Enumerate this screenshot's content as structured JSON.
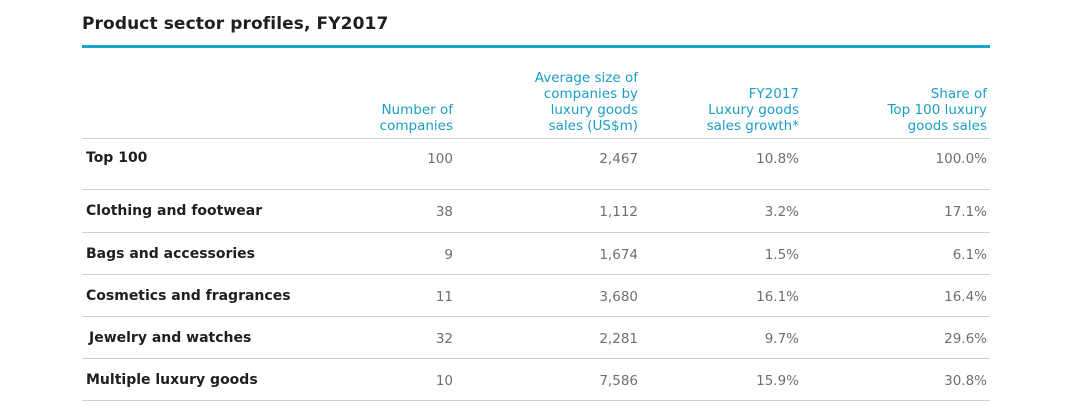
{
  "title": "Product sector profiles, FY2017",
  "headers": [
    "Number of\ncompanies",
    "Average size of\ncompanies by\nluxury goods\nsales (US$m)",
    "FY2017\nLuxury goods\nsales growth*",
    "Share of\nTop 100 luxury\ngoods sales"
  ],
  "rows": [
    {
      "label": "Top 100",
      "number": "100",
      "avg_size": "2,467",
      "growth": "10.8%",
      "share": "100.0%"
    },
    {
      "label": "Clothing and footwear",
      "number": "38",
      "avg_size": "1,112",
      "growth": "3.2%",
      "share": "17.1%"
    },
    {
      "label": "Bags and accessories",
      "number": "9",
      "avg_size": "1,674",
      "growth": "1.5%",
      "share": "6.1%"
    },
    {
      "label": "Cosmetics and fragrances",
      "number": "11",
      "avg_size": "3,680",
      "growth": "16.1%",
      "share": "16.4%"
    },
    {
      "label": "Jewelry and watches",
      "number": "32",
      "avg_size": "2,281",
      "growth": "9.7%",
      "share": "29.6%"
    },
    {
      "label": "Multiple luxury goods",
      "number": "10",
      "avg_size": "7,586",
      "growth": "15.9%",
      "share": "30.8%"
    }
  ],
  "colors": {
    "accent": "#1aa6c9",
    "header_text": "#1a9ec6",
    "cell_text": "#6f6f6f",
    "divider": "#cfcfcf"
  }
}
